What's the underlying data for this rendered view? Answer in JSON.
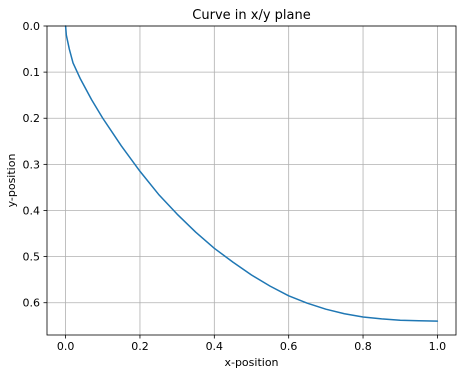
{
  "chart_data": {
    "type": "line",
    "title": "Curve in x/y plane",
    "xlabel": "x-position",
    "ylabel": "y-position",
    "xlim": [
      -0.05,
      1.05
    ],
    "ylim": [
      0.0,
      0.67
    ],
    "y_inverted": true,
    "grid": true,
    "xticks": [
      0.0,
      0.2,
      0.4,
      0.6,
      0.8,
      1.0
    ],
    "xtick_labels": [
      "0.0",
      "0.2",
      "0.4",
      "0.6",
      "0.8",
      "1.0"
    ],
    "yticks": [
      0.0,
      0.1,
      0.2,
      0.3,
      0.4,
      0.5,
      0.6
    ],
    "ytick_labels": [
      "0.0",
      "0.1",
      "0.2",
      "0.3",
      "0.4",
      "0.5",
      "0.6"
    ],
    "series": [
      {
        "color": "#1f77b4",
        "x": [
          0.0,
          0.002,
          0.01,
          0.02,
          0.04,
          0.07,
          0.1,
          0.15,
          0.2,
          0.25,
          0.3,
          0.35,
          0.4,
          0.45,
          0.5,
          0.55,
          0.6,
          0.65,
          0.7,
          0.75,
          0.8,
          0.85,
          0.9,
          0.95,
          1.0
        ],
        "y": [
          0.0,
          0.02,
          0.05,
          0.08,
          0.115,
          0.16,
          0.2,
          0.26,
          0.315,
          0.365,
          0.408,
          0.447,
          0.482,
          0.512,
          0.54,
          0.564,
          0.585,
          0.601,
          0.614,
          0.624,
          0.631,
          0.635,
          0.638,
          0.639,
          0.64
        ]
      }
    ]
  }
}
